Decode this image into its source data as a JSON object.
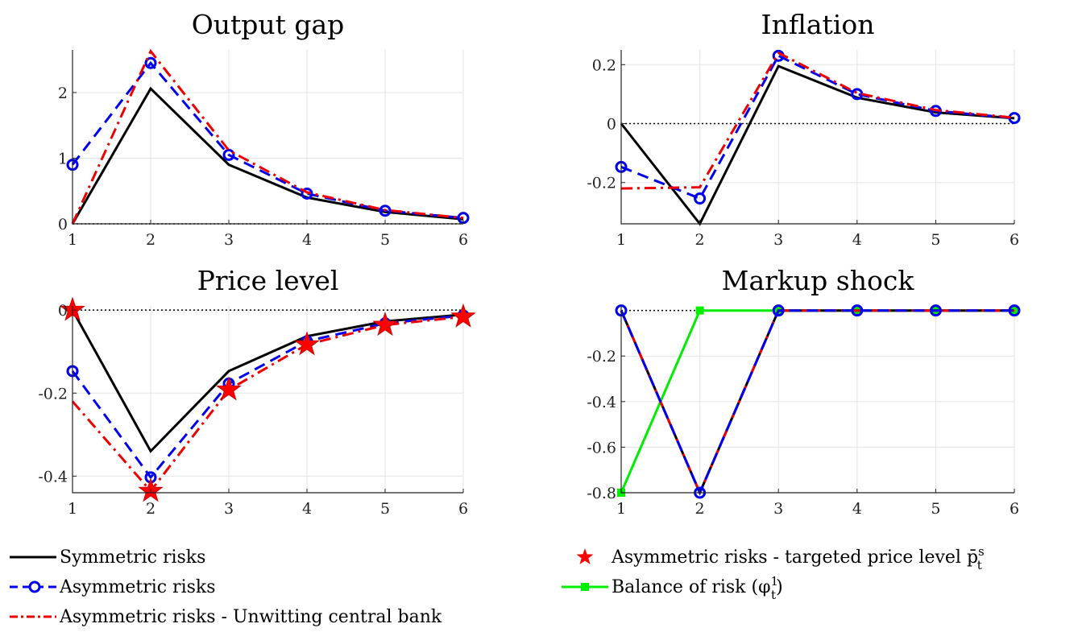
{
  "colors": {
    "symmetric": "#000000",
    "asymmetric": "#0000ee",
    "unwitting": "#ee0000",
    "targeted": "#ff0000",
    "balance": "#00ee00"
  },
  "legend": [
    {
      "key": "symmetric",
      "label": "Symmetric risks",
      "marker": "line"
    },
    {
      "key": "asymmetric",
      "label": "Asymmetric risks",
      "marker": "circle"
    },
    {
      "key": "unwitting",
      "label": "Asymmetric risks - Unwitting central bank",
      "marker": "dashdot"
    },
    {
      "key": "targeted",
      "label": "Asymmetric risks - targeted price level p̄",
      "sup": "s",
      "sub": "t",
      "marker": "star"
    },
    {
      "key": "balance",
      "label": "Balance of risk (φ",
      "sup": "1",
      "sub": "t",
      "suffix": ")",
      "marker": "square"
    }
  ],
  "chart_data": [
    {
      "id": "output-gap",
      "type": "line",
      "title": "Output gap",
      "x": [
        1,
        2,
        3,
        4,
        5,
        6
      ],
      "xlim": [
        1,
        6
      ],
      "ylim": [
        0,
        2.65
      ],
      "yticks": [
        0,
        1,
        2
      ],
      "ytick_labels": [
        "0",
        "1",
        "2"
      ],
      "xticks": [
        1,
        2,
        3,
        4,
        5,
        6
      ],
      "grid": true,
      "zero_line": true,
      "series": [
        {
          "key": "symmetric",
          "name": "Symmetric risks",
          "values": [
            0,
            2.06,
            0.9,
            0.4,
            0.18,
            0.07
          ]
        },
        {
          "key": "asymmetric",
          "name": "Asymmetric risks",
          "values": [
            0.9,
            2.45,
            1.05,
            0.46,
            0.2,
            0.09
          ]
        },
        {
          "key": "unwitting",
          "name": "Asymmetric risks - Unwitting central bank",
          "values": [
            0,
            2.63,
            1.12,
            0.48,
            0.21,
            0.09
          ]
        }
      ]
    },
    {
      "id": "inflation",
      "type": "line",
      "title": "Inflation",
      "x": [
        1,
        2,
        3,
        4,
        5,
        6
      ],
      "xlim": [
        1,
        6
      ],
      "ylim": [
        -0.34,
        0.25
      ],
      "yticks": [
        -0.2,
        0,
        0.2
      ],
      "ytick_labels": [
        "-0.2",
        "0",
        "0.2"
      ],
      "xticks": [
        1,
        2,
        3,
        4,
        5,
        6
      ],
      "grid": true,
      "zero_line": true,
      "series": [
        {
          "key": "symmetric",
          "name": "Symmetric risks",
          "values": [
            0,
            -0.34,
            0.195,
            0.088,
            0.038,
            0.018
          ]
        },
        {
          "key": "asymmetric",
          "name": "Asymmetric risks",
          "values": [
            -0.147,
            -0.254,
            0.23,
            0.1,
            0.043,
            0.019
          ]
        },
        {
          "key": "unwitting",
          "name": "Asymmetric risks - Unwitting central bank",
          "values": [
            -0.22,
            -0.216,
            0.24,
            0.104,
            0.046,
            0.02
          ]
        }
      ]
    },
    {
      "id": "price-level",
      "type": "line",
      "title": "Price level",
      "x": [
        1,
        2,
        3,
        4,
        5,
        6
      ],
      "xlim": [
        1,
        6
      ],
      "ylim": [
        -0.44,
        0.01
      ],
      "yticks": [
        -0.4,
        -0.2,
        0
      ],
      "ytick_labels": [
        "-0.4",
        "-0.2",
        "0"
      ],
      "xticks": [
        1,
        2,
        3,
        4,
        5,
        6
      ],
      "grid": true,
      "zero_line": true,
      "series": [
        {
          "key": "symmetric",
          "name": "Symmetric risks",
          "values": [
            0,
            -0.34,
            -0.147,
            -0.063,
            -0.027,
            -0.011
          ]
        },
        {
          "key": "asymmetric",
          "name": "Asymmetric risks",
          "values": [
            -0.147,
            -0.403,
            -0.177,
            -0.075,
            -0.032,
            -0.013
          ]
        },
        {
          "key": "unwitting",
          "name": "Asymmetric risks - Unwitting central bank",
          "values": [
            -0.22,
            -0.436,
            -0.192,
            -0.083,
            -0.036,
            -0.016
          ]
        },
        {
          "key": "targeted",
          "name": "Asymmetric risks - targeted price level",
          "marker_only": true,
          "values": [
            0,
            -0.436,
            -0.192,
            -0.083,
            -0.036,
            -0.016
          ]
        }
      ]
    },
    {
      "id": "markup-shock",
      "type": "line",
      "title": "Markup shock",
      "x": [
        1,
        2,
        3,
        4,
        5,
        6
      ],
      "xlim": [
        1,
        6
      ],
      "ylim": [
        -0.8,
        0.02
      ],
      "yticks": [
        -0.8,
        -0.6,
        -0.4,
        -0.2
      ],
      "ytick_labels": [
        "-0.8",
        "-0.6",
        "-0.4",
        "-0.2"
      ],
      "xticks": [
        1,
        2,
        3,
        4,
        5,
        6
      ],
      "grid": true,
      "zero_line": true,
      "series": [
        {
          "key": "balance",
          "name": "Balance of risk",
          "values": [
            -0.8,
            0,
            0,
            0,
            0,
            0
          ]
        },
        {
          "key": "symmetric",
          "name": "Symmetric risks",
          "values": [
            0,
            -0.8,
            0,
            0,
            0,
            0
          ]
        },
        {
          "key": "unwitting",
          "name": "Asymmetric risks - Unwitting central bank",
          "values": [
            0,
            -0.8,
            0,
            0,
            0,
            0
          ]
        },
        {
          "key": "asymmetric",
          "name": "Asymmetric risks",
          "values": [
            0,
            -0.8,
            0,
            0,
            0,
            0
          ]
        }
      ]
    }
  ]
}
